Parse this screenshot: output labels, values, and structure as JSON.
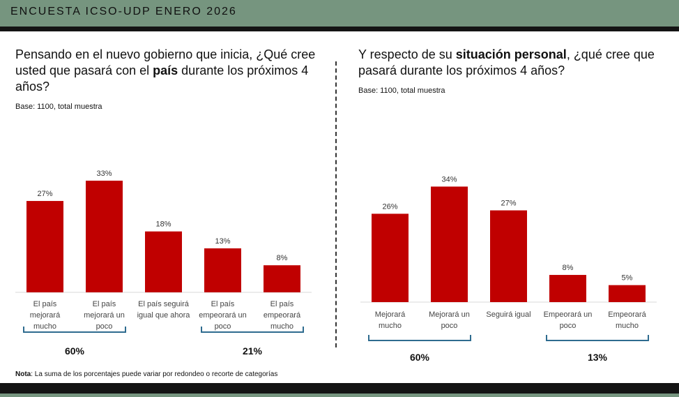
{
  "header": {
    "title": "ENCUESTA ICSO-UDP ENERO 2026"
  },
  "left": {
    "question_pre": "Pensando en el nuevo gobierno que inicia, ¿Qué cree usted que pasará con el ",
    "question_bold": "país",
    "question_post": " durante los próximos 4 años?",
    "base": "Base: 1100, total muestra"
  },
  "right": {
    "question_pre": "Y respecto de su ",
    "question_bold": "situación personal",
    "question_post": ", ¿qué cree que pasará durante los próximos 4 años?",
    "base": "Base: 1100, total muestra"
  },
  "note": {
    "label": "Nota",
    "text": ": La suma de los porcentajes puede variar por redondeo o recorte de categorías"
  },
  "colors": {
    "bar": "#c00000",
    "bracket": "#2e6b8f",
    "header": "#76957f"
  },
  "chart_data": [
    {
      "type": "bar",
      "title": "",
      "categories": [
        [
          "El país",
          "mejorará",
          "mucho"
        ],
        [
          "El país",
          "mejorará un",
          "poco"
        ],
        [
          "El país seguirá",
          "igual que ahora"
        ],
        [
          "El país",
          "empeorará un",
          "poco"
        ],
        [
          "El país",
          "empeorará",
          "mucho"
        ]
      ],
      "values": [
        27,
        33,
        18,
        13,
        8
      ],
      "value_labels": [
        "27%",
        "33%",
        "18%",
        "13%",
        "8%"
      ],
      "ylim": [
        0,
        40
      ],
      "groups": [
        {
          "from": 0,
          "to": 1,
          "label": "60%"
        },
        {
          "from": 3,
          "to": 4,
          "label": "21%"
        }
      ]
    },
    {
      "type": "bar",
      "title": "",
      "categories": [
        [
          "Mejorará",
          "mucho"
        ],
        [
          "Mejorará un",
          "poco"
        ],
        [
          "Seguirá igual"
        ],
        [
          "Empeorará un",
          "poco"
        ],
        [
          "Empeorará",
          "mucho"
        ]
      ],
      "values": [
        26,
        34,
        27,
        8,
        5
      ],
      "value_labels": [
        "26%",
        "34%",
        "27%",
        "8%",
        "5%"
      ],
      "ylim": [
        0,
        40
      ],
      "groups": [
        {
          "from": 0,
          "to": 1,
          "label": "60%"
        },
        {
          "from": 3,
          "to": 4,
          "label": "13%"
        }
      ]
    }
  ]
}
